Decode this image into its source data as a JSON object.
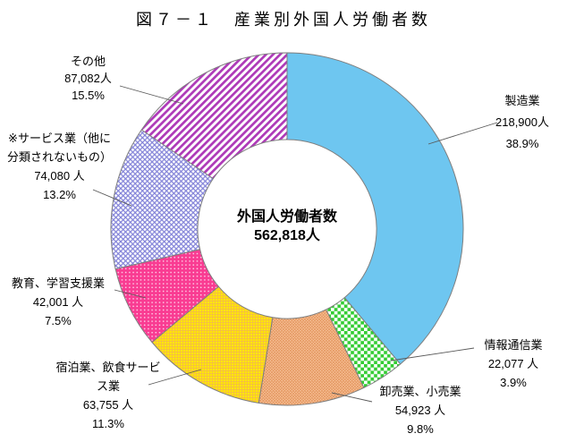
{
  "title": "図７－１　産業別外国人労働者数",
  "chart_data": {
    "type": "pie",
    "subtype": "donut",
    "title": "図７－１　産業別外国人労働者数",
    "center_label": "外国人労働者数",
    "center_value": "562,818人",
    "total": 562818,
    "legend_position": "callouts",
    "start_angle_deg": 0,
    "direction": "clockwise",
    "segments": [
      {
        "key": "manufacturing",
        "label": "製造業",
        "value": 218900,
        "people": "218,900人",
        "percent": "38.9%",
        "label_lines": [
          "製造業",
          "218,900人",
          "38.9%"
        ],
        "swatch": {
          "pattern": "solid",
          "bg": "#6EC6F0",
          "fg": "#6EC6F0"
        }
      },
      {
        "key": "information-communications",
        "label": "情報通信業",
        "value": 22077,
        "people": "22,077 人",
        "percent": "3.9%",
        "label_lines": [
          "情報通信業",
          "22,077 人",
          "3.9%"
        ],
        "swatch": {
          "pattern": "checker",
          "bg": "#FFFFFF",
          "fg": "#33CC33"
        }
      },
      {
        "key": "wholesale-retail",
        "label": "卸売業、小売業",
        "value": 54923,
        "people": "54,923 人",
        "percent": "9.8%",
        "label_lines": [
          "卸売業、小売業",
          "54,923 人",
          "9.8%"
        ],
        "swatch": {
          "pattern": "crosshatch",
          "bg": "#F9C49C",
          "fg": "#DE8B50"
        }
      },
      {
        "key": "accommodation-food-service",
        "label": "宿泊業、飲食サービス業",
        "value": 63755,
        "people": "63,755 人",
        "percent": "11.3%",
        "label_lines": [
          "宿泊業、飲食サービ",
          "ス業",
          "63,755 人",
          "11.3%"
        ],
        "swatch": {
          "pattern": "grid",
          "bg": "#FFE601",
          "fg": "#F3B94F"
        }
      },
      {
        "key": "education-learning-support",
        "label": "教育、学習支援業",
        "value": 42001,
        "people": "42,001 人",
        "percent": "7.5%",
        "label_lines": [
          "教育、学習支援業",
          "42,001 人",
          "7.5%"
        ],
        "swatch": {
          "pattern": "dots",
          "bg": "#F93C92",
          "fg": "#FDCFE8"
        }
      },
      {
        "key": "services-nec",
        "label": "※サービス業（他に分類されないもの）",
        "value": 74080,
        "people": "74,080 人",
        "percent": "13.2%",
        "label_lines": [
          "※サービス業（他に",
          "分類されないもの）",
          "74,080 人",
          "13.2%"
        ],
        "swatch": {
          "pattern": "lattice",
          "bg": "#FFFFFF",
          "fg": "#8282D8"
        }
      },
      {
        "key": "others",
        "label": "その他",
        "value": 87082,
        "people": "87,082人",
        "percent": "15.5%",
        "label_lines": [
          "その他",
          "87,082人",
          "15.5%"
        ],
        "swatch": {
          "pattern": "stripes",
          "bg": "#FFFFFF",
          "fg": "#AE3AB8"
        }
      }
    ],
    "stroke_color": "#7F7F7F",
    "leader_line_color": "#595959"
  }
}
